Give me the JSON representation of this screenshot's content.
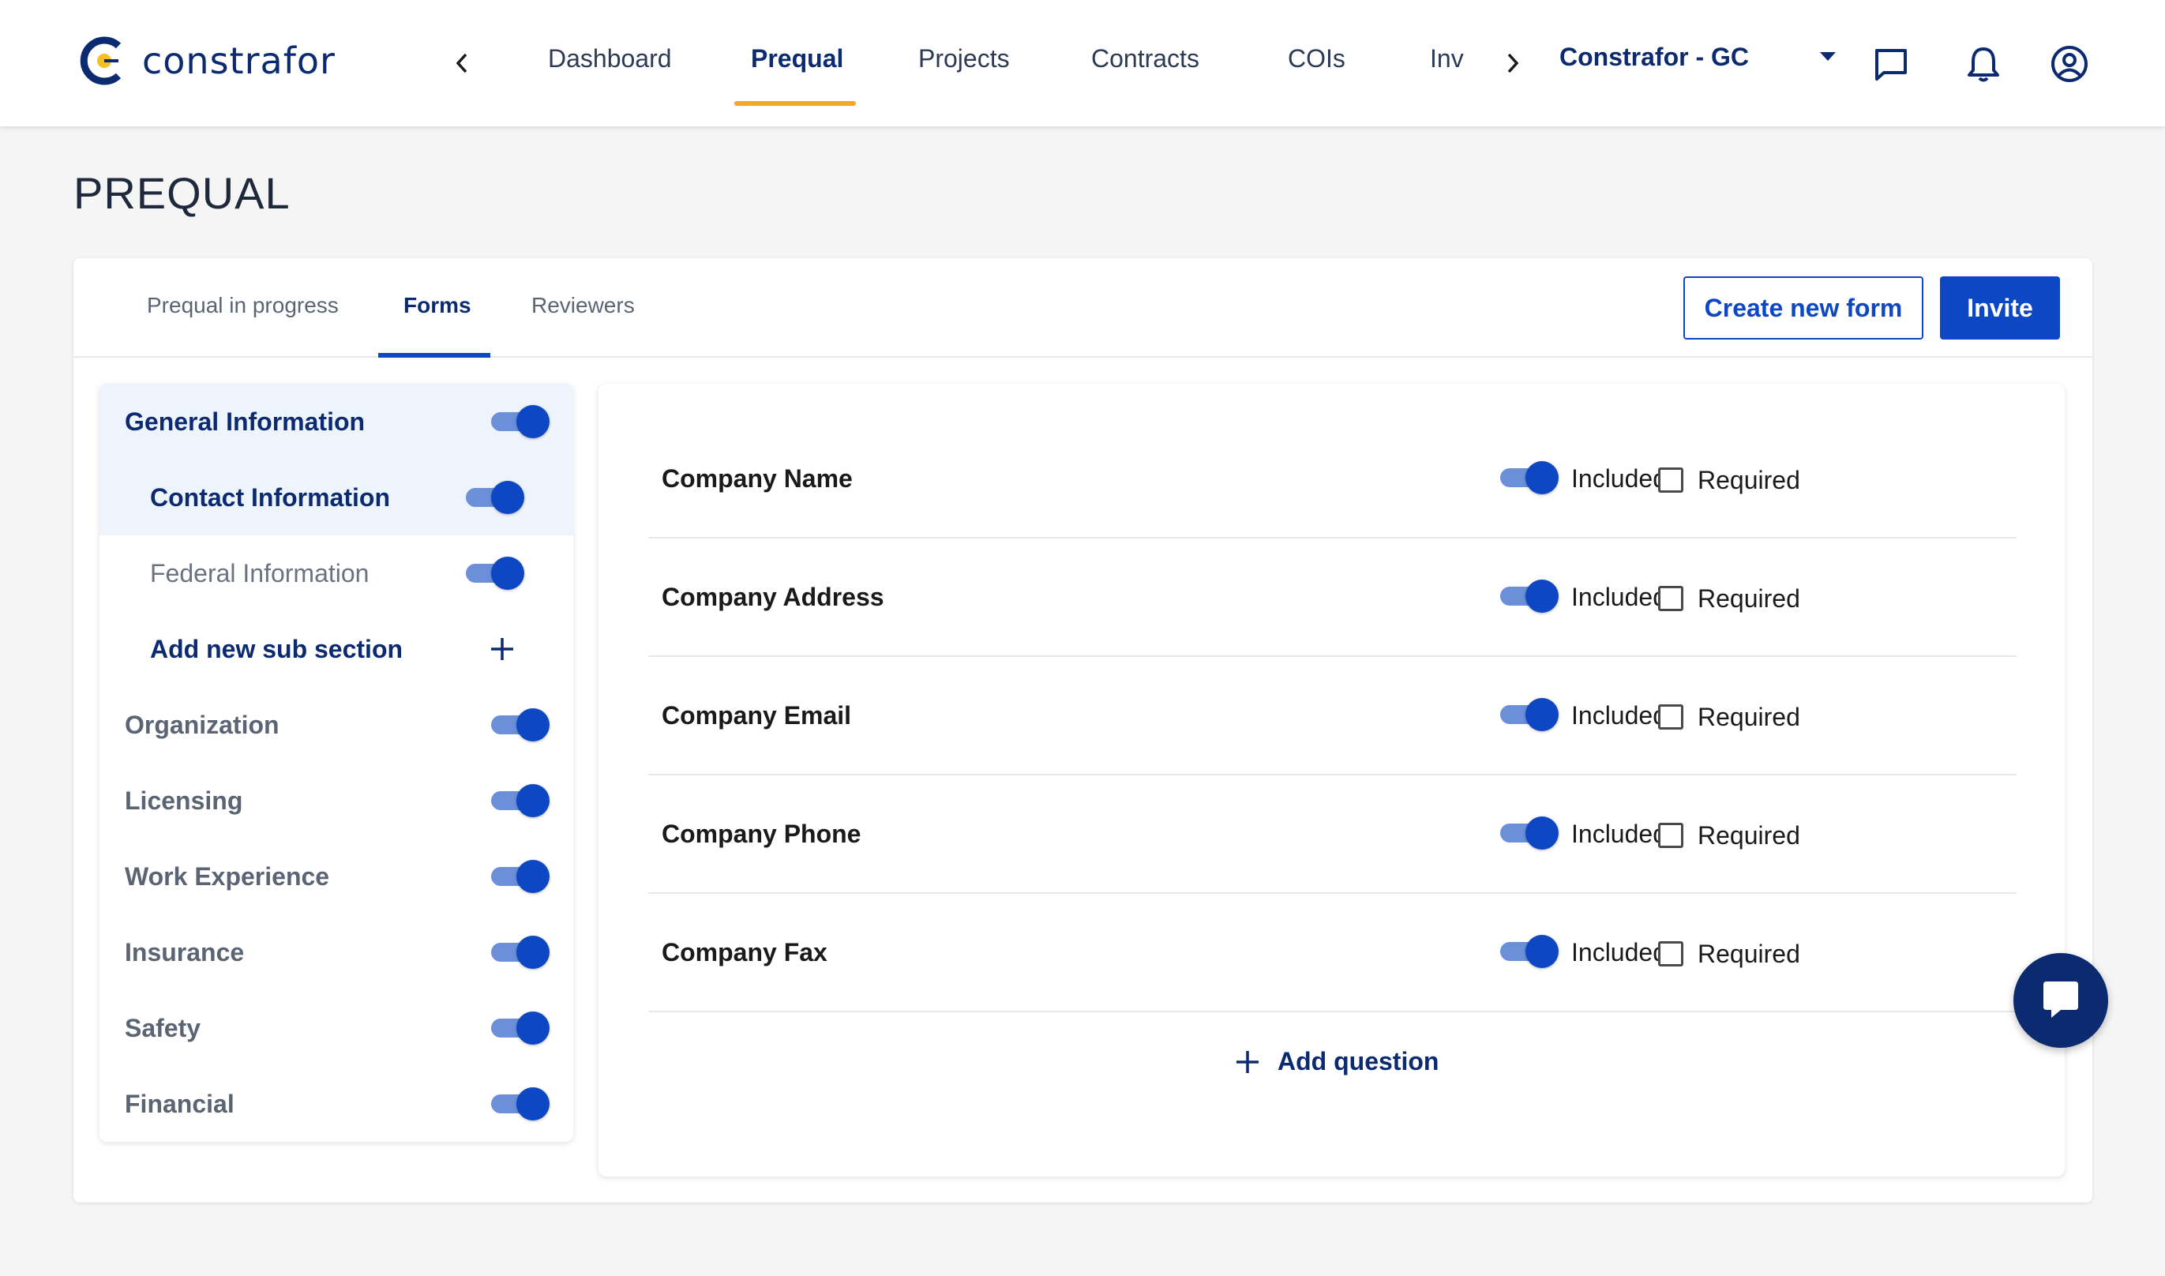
{
  "header": {
    "logo_text": "constrafor",
    "nav": [
      "Dashboard",
      "Prequal",
      "Projects",
      "Contracts",
      "COIs",
      "Inv"
    ],
    "active_nav": "Prequal",
    "org_name": "Constrafor - GC"
  },
  "page": {
    "title": "PREQUAL"
  },
  "tabs": [
    "Prequal in progress",
    "Forms",
    "Reviewers"
  ],
  "active_tab": "Forms",
  "actions": {
    "create_label": "Create new form",
    "invite_label": "Invite"
  },
  "sidebar": {
    "items": [
      {
        "label": "General Information",
        "toggle": true,
        "selected": true
      },
      {
        "label": "Contact Information",
        "toggle": true,
        "sub": true,
        "selected": true
      },
      {
        "label": "Federal Information",
        "toggle": true,
        "sub": true
      },
      {
        "label": "Add new sub section",
        "add": true
      },
      {
        "label": "Organization",
        "toggle": true
      },
      {
        "label": "Licensing",
        "toggle": true
      },
      {
        "label": "Work Experience",
        "toggle": true
      },
      {
        "label": "Insurance",
        "toggle": true
      },
      {
        "label": "Safety",
        "toggle": true
      },
      {
        "label": "Financial",
        "toggle": true
      }
    ]
  },
  "questions": [
    {
      "label": "Company Name",
      "included": true,
      "required": false
    },
    {
      "label": "Company Address",
      "included": true,
      "required": false
    },
    {
      "label": "Company Email",
      "included": true,
      "required": false
    },
    {
      "label": "Company Phone",
      "included": true,
      "required": false
    },
    {
      "label": "Company Fax",
      "included": true,
      "required": false
    }
  ],
  "question_labels": {
    "included": "Included",
    "required": "Required"
  },
  "add_question_label": "Add question",
  "colors": {
    "primary": "#0d47c4",
    "navy": "#0b2a6f",
    "accent": "#f5a623"
  },
  "icons": [
    "back-chevron-icon",
    "forward-chevron-icon",
    "message-icon",
    "bell-icon",
    "user-icon",
    "plus-icon",
    "chat-icon"
  ]
}
